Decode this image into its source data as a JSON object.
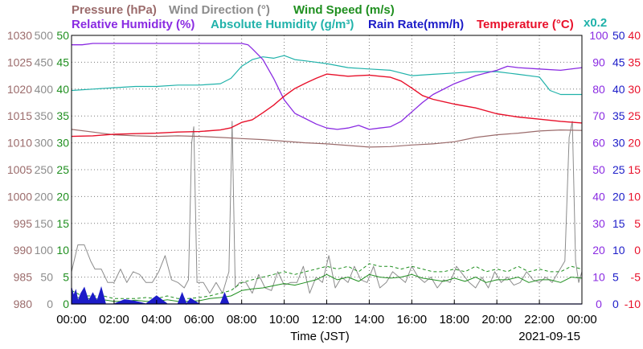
{
  "chart_data": {
    "type": "line",
    "date": "2021-09-15",
    "xlabel": "Time (JST)",
    "x_ticks": [
      "00:00",
      "02:00",
      "04:00",
      "06:00",
      "08:00",
      "10:00",
      "12:00",
      "14:00",
      "16:00",
      "18:00",
      "20:00",
      "22:00",
      "00:00"
    ],
    "x_range_hours": [
      0,
      24
    ],
    "grid": true,
    "legend": [
      {
        "id": "pressure",
        "label": "Pressure (hPa)",
        "color": "#9b6b6b"
      },
      {
        "id": "winddir",
        "label": "Wind Direction (°)",
        "color": "#8c8c8c"
      },
      {
        "id": "windspeed",
        "label": "Wind Speed (m/s)",
        "color": "#1f8f1f"
      },
      {
        "id": "rh",
        "label": "Relative Humidity (%)",
        "color": "#8a2be2"
      },
      {
        "id": "ah",
        "label": "Absolute Humidity (g/m³)",
        "color": "#20b2aa"
      },
      {
        "id": "rain",
        "label": "Rain Rate(mm/h)",
        "color": "#1c1cc8"
      },
      {
        "id": "temp",
        "label": "Temperature (°C)",
        "color": "#e8102a"
      }
    ],
    "ah_scale_label": "x0.2",
    "axes": {
      "pressure": {
        "ticks": [
          "1030",
          "1025",
          "1020",
          "1015",
          "1010",
          "1005",
          "1000",
          "995",
          "990",
          "985",
          "980"
        ],
        "range": [
          980,
          1030
        ],
        "color": "#9b6b6b"
      },
      "winddir": {
        "ticks": [
          "500",
          "450",
          "400",
          "350",
          "300",
          "250",
          "200",
          "150",
          "100",
          "50",
          "0"
        ],
        "range": [
          0,
          500
        ],
        "color": "#8c8c8c"
      },
      "windspeed": {
        "ticks": [
          "50",
          "45",
          "40",
          "35",
          "30",
          "25",
          "20",
          "15",
          "10",
          "5",
          "0"
        ],
        "range": [
          0,
          50
        ],
        "color": "#1f8f1f"
      },
      "rh": {
        "ticks": [
          "100",
          "90",
          "80",
          "70",
          "60",
          "50",
          "40",
          "30",
          "20",
          "10",
          "0"
        ],
        "range": [
          0,
          100
        ],
        "color": "#8a2be2"
      },
      "rain": {
        "ticks": [
          "50",
          "45",
          "40",
          "35",
          "30",
          "25",
          "20",
          "15",
          "10",
          "5",
          "0"
        ],
        "range": [
          0,
          50
        ],
        "color": "#1c1cc8"
      },
      "temp": {
        "ticks": [
          "40",
          "35",
          "30",
          "25",
          "20",
          "15",
          "10",
          "5",
          "0",
          "-5",
          "-10"
        ],
        "range": [
          -10,
          40
        ],
        "color": "#e8102a"
      }
    },
    "series": [
      {
        "id": "temp",
        "name": "Temperature (°C)",
        "axis": "temp",
        "x": [
          0,
          1,
          2,
          3,
          4,
          5,
          6,
          7,
          7.5,
          8,
          8.5,
          9,
          9.5,
          10,
          10.5,
          11,
          11.5,
          12,
          12.5,
          13,
          13.5,
          14,
          14.5,
          15,
          15.5,
          16,
          16.5,
          17,
          18,
          19,
          20,
          21,
          22,
          23,
          24
        ],
        "y": [
          21.2,
          21.3,
          21.6,
          21.7,
          21.8,
          22.0,
          22.1,
          22.4,
          22.8,
          23.8,
          24.3,
          25.6,
          27.0,
          28.7,
          30.1,
          31.1,
          32.0,
          32.8,
          32.6,
          32.4,
          32.5,
          32.6,
          32.4,
          32.2,
          31.5,
          30.2,
          28.8,
          28.1,
          27.2,
          26.5,
          25.4,
          24.8,
          24.4,
          24.0,
          23.7
        ]
      },
      {
        "id": "rh",
        "name": "Relative Humidity (%)",
        "axis": "rh",
        "x": [
          0,
          0.5,
          1,
          2,
          3,
          4,
          5,
          6,
          7,
          7.5,
          8,
          8.3,
          8.5,
          9,
          9.5,
          10,
          10.5,
          11,
          11.5,
          12,
          12.5,
          13,
          13.5,
          14,
          14.5,
          15,
          15.5,
          16,
          16.5,
          17,
          18,
          19,
          20,
          20.5,
          21,
          22,
          23,
          24
        ],
        "y": [
          96.5,
          96.5,
          97.0,
          97.0,
          97.0,
          97.0,
          97.0,
          97.0,
          97.0,
          97.0,
          97.0,
          96.5,
          95.0,
          91.0,
          84.0,
          76.0,
          71.0,
          69.0,
          67.0,
          65.5,
          65.0,
          65.5,
          66.5,
          65.0,
          65.5,
          66.0,
          68.0,
          71.5,
          75.0,
          78.0,
          82.0,
          85.0,
          87.0,
          88.5,
          88.0,
          87.5,
          87.0,
          88.0
        ]
      },
      {
        "id": "ah",
        "name": "Absolute Humidity (g/m³)",
        "axis": "rh",
        "x": [
          0,
          1,
          2,
          3,
          4,
          5,
          6,
          7,
          7.5,
          8,
          8.5,
          9,
          9.5,
          10,
          10.5,
          11,
          12,
          13,
          14,
          15,
          16,
          17,
          18,
          19,
          20,
          21,
          22,
          22.5,
          23,
          24
        ],
        "y": [
          79.5,
          80.0,
          80.5,
          81.0,
          81.0,
          81.5,
          81.5,
          82.0,
          84.0,
          88.5,
          91.0,
          92.0,
          91.5,
          92.5,
          91.0,
          90.5,
          89.5,
          88.0,
          87.5,
          87.0,
          85.0,
          85.5,
          86.0,
          86.5,
          86.5,
          85.5,
          84.5,
          79.5,
          78.0,
          78.0
        ]
      },
      {
        "id": "pressure",
        "name": "Pressure (hPa)",
        "axis": "pressure",
        "x": [
          0,
          1,
          2,
          3,
          4,
          5,
          6,
          7,
          8,
          9,
          10,
          11,
          12,
          13,
          14,
          15,
          16,
          17,
          18,
          19,
          20,
          21,
          22,
          23,
          24
        ],
        "y": [
          1012.5,
          1012.0,
          1011.5,
          1011.3,
          1011.2,
          1011.3,
          1011.2,
          1011.0,
          1010.8,
          1010.6,
          1010.3,
          1010.0,
          1009.8,
          1009.5,
          1009.2,
          1009.3,
          1009.6,
          1009.8,
          1010.2,
          1011.0,
          1011.5,
          1011.8,
          1012.2,
          1012.4,
          1012.3
        ]
      },
      {
        "id": "winddir",
        "name": "Wind Direction (°)",
        "axis": "winddir",
        "x": [
          0,
          0.3,
          0.6,
          0.9,
          1.1,
          1.4,
          1.7,
          2.0,
          2.3,
          2.6,
          2.9,
          3.2,
          3.5,
          3.8,
          4.1,
          4.4,
          4.7,
          5.0,
          5.3,
          5.5,
          5.65,
          5.75,
          5.9,
          6.2,
          6.5,
          6.8,
          7.1,
          7.4,
          7.55,
          7.7,
          7.9,
          8.2,
          8.5,
          8.8,
          9.1,
          9.4,
          9.7,
          10.0,
          10.3,
          10.6,
          10.9,
          11.2,
          11.5,
          11.8,
          12.1,
          12.4,
          12.7,
          13.0,
          13.3,
          13.6,
          13.9,
          14.2,
          14.5,
          14.8,
          15.1,
          15.4,
          15.7,
          16.0,
          16.3,
          16.6,
          16.9,
          17.2,
          17.5,
          17.8,
          18.1,
          18.4,
          18.7,
          19.0,
          19.3,
          19.6,
          19.9,
          20.2,
          20.5,
          20.8,
          21.1,
          21.4,
          21.7,
          22.0,
          22.3,
          22.6,
          22.9,
          23.2,
          23.4,
          23.55,
          23.7,
          23.85,
          24
        ],
        "y": [
          60,
          110,
          110,
          80,
          65,
          65,
          40,
          40,
          65,
          40,
          60,
          55,
          40,
          40,
          60,
          90,
          45,
          40,
          30,
          45,
          300,
          330,
          40,
          40,
          20,
          40,
          20,
          60,
          340,
          30,
          40,
          40,
          20,
          55,
          30,
          25,
          60,
          35,
          40,
          40,
          70,
          20,
          50,
          40,
          90,
          30,
          50,
          40,
          70,
          45,
          40,
          70,
          30,
          40,
          60,
          50,
          40,
          70,
          50,
          40,
          50,
          30,
          45,
          40,
          70,
          55,
          40,
          30,
          50,
          30,
          60,
          40,
          50,
          35,
          40,
          60,
          45,
          40,
          50,
          40,
          60,
          80,
          310,
          340,
          80,
          40,
          60
        ]
      },
      {
        "id": "windspeed",
        "name": "Wind Speed (m/s)",
        "axis": "windspeed",
        "x": [
          0,
          0.5,
          1,
          1.5,
          2,
          2.5,
          3,
          3.5,
          4,
          4.5,
          5,
          5.5,
          6,
          6.5,
          7,
          7.5,
          8,
          8.5,
          9,
          9.5,
          10,
          10.5,
          11,
          11.5,
          12,
          12.5,
          13,
          13.5,
          14,
          14.5,
          15,
          15.5,
          16,
          16.5,
          17,
          17.5,
          18,
          18.5,
          19,
          19.5,
          20,
          20.5,
          21,
          21.5,
          22,
          22.5,
          23,
          23.5,
          24
        ],
        "y": [
          1.5,
          1.0,
          1.0,
          0.8,
          0.5,
          0.5,
          0.7,
          0.5,
          0.5,
          0.8,
          0.5,
          0.5,
          0.6,
          1.0,
          1.2,
          1.5,
          2.5,
          2.8,
          3.0,
          3.4,
          3.8,
          3.5,
          4.0,
          4.5,
          5.5,
          4.5,
          5.0,
          4.2,
          5.5,
          5.0,
          4.8,
          5.0,
          5.5,
          4.8,
          4.5,
          4.2,
          4.8,
          4.2,
          5.0,
          4.0,
          4.5,
          4.5,
          5.0,
          4.0,
          4.5,
          4.5,
          4.0,
          5.0,
          4.8
        ]
      },
      {
        "id": "windgust",
        "name": "",
        "axis": "windspeed",
        "x": [
          0,
          0.5,
          1,
          1.5,
          2,
          2.5,
          3,
          3.5,
          4,
          4.5,
          5,
          5.5,
          6,
          6.5,
          7,
          7.5,
          8,
          8.5,
          9,
          9.5,
          10,
          10.5,
          11,
          11.5,
          12,
          12.5,
          13,
          13.5,
          14,
          14.5,
          15,
          15.5,
          16,
          16.5,
          17,
          17.5,
          18,
          18.5,
          19,
          19.5,
          20,
          20.5,
          21,
          21.5,
          22,
          22.5,
          23,
          23.5,
          24
        ],
        "y": [
          2.5,
          1.5,
          1.5,
          1.5,
          1.0,
          1.0,
          1.0,
          1.2,
          1.0,
          1.5,
          1.0,
          1.0,
          1.2,
          1.5,
          2.0,
          2.5,
          4.0,
          4.5,
          5.0,
          5.5,
          6.0,
          5.5,
          6.0,
          6.5,
          7.0,
          6.5,
          7.0,
          6.0,
          7.5,
          7.0,
          7.0,
          6.5,
          7.0,
          6.5,
          6.0,
          6.0,
          6.5,
          6.0,
          7.0,
          6.0,
          6.5,
          6.0,
          7.0,
          6.0,
          6.5,
          6.0,
          6.0,
          7.0,
          6.5
        ]
      },
      {
        "id": "rain",
        "name": "Rain Rate(mm/h)",
        "axis": "rain",
        "x": [
          0,
          0.1,
          0.2,
          0.3,
          0.45,
          0.6,
          0.8,
          1.0,
          1.2,
          1.4,
          1.6,
          2.0,
          2.5,
          3.0,
          3.5,
          4.0,
          4.5,
          5.0,
          5.2,
          5.4,
          5.6,
          6.0,
          6.5,
          7.0,
          7.2,
          7.4,
          7.5,
          7.6,
          7.8,
          8.0,
          12.0,
          16.0,
          20.0,
          24.0
        ],
        "y": [
          3.0,
          1.5,
          2.5,
          0.5,
          2.0,
          3.0,
          0.5,
          2.0,
          0.5,
          3.0,
          0,
          0,
          0.8,
          0.5,
          0,
          1.5,
          0,
          0,
          2.0,
          0,
          1.0,
          0,
          0,
          0,
          2.0,
          0,
          0,
          0,
          0,
          0,
          0,
          0,
          0,
          0
        ]
      }
    ]
  }
}
